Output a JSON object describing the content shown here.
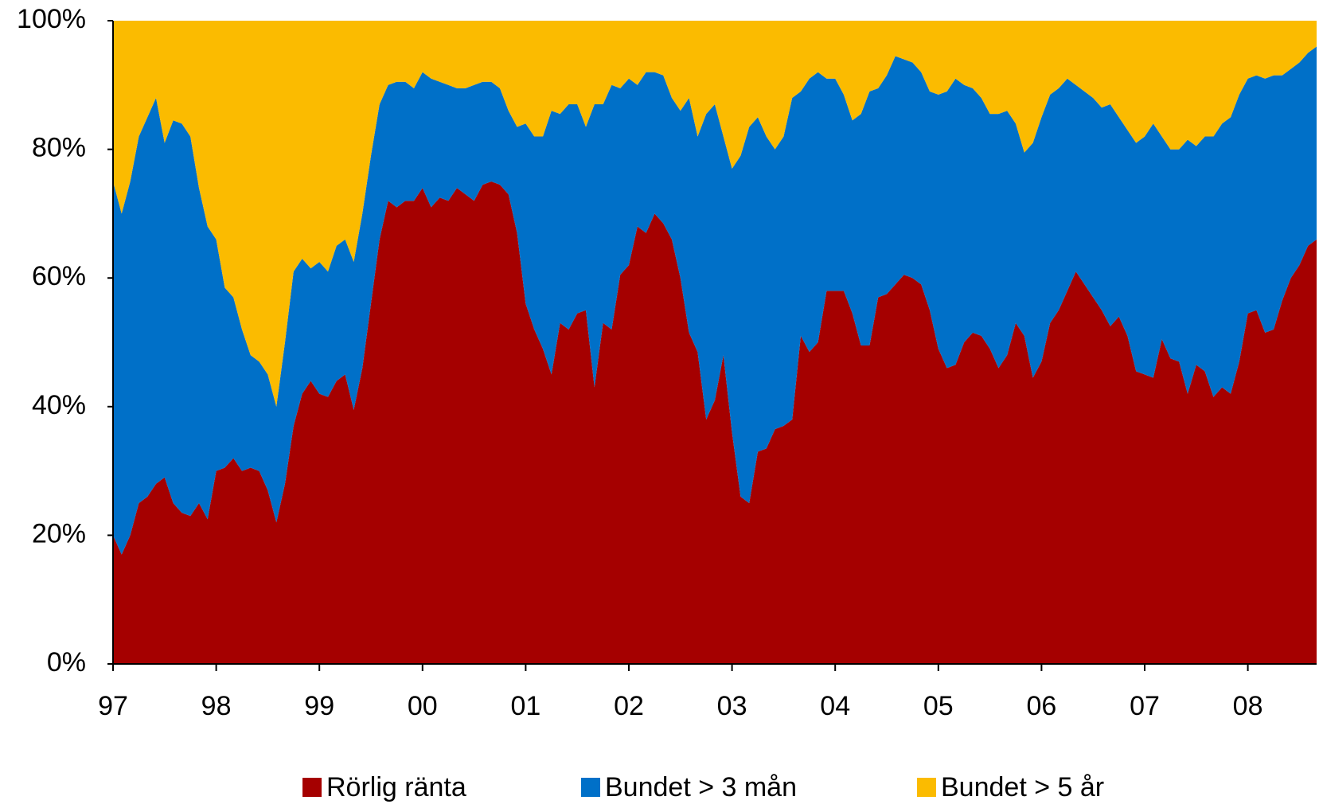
{
  "chart_data": {
    "type": "stacked-area",
    "categories": [
      "97",
      null,
      null,
      null,
      null,
      null,
      null,
      null,
      null,
      null,
      null,
      null,
      "98",
      null,
      null,
      null,
      null,
      null,
      null,
      null,
      null,
      null,
      null,
      null,
      "99",
      null,
      null,
      null,
      null,
      null,
      null,
      null,
      null,
      null,
      null,
      null,
      "00",
      null,
      null,
      null,
      null,
      null,
      null,
      null,
      null,
      null,
      null,
      null,
      "01",
      null,
      null,
      null,
      null,
      null,
      null,
      null,
      null,
      null,
      null,
      null,
      "02",
      null,
      null,
      null,
      null,
      null,
      null,
      null,
      null,
      null,
      null,
      null,
      "03",
      null,
      null,
      null,
      null,
      null,
      null,
      null,
      null,
      null,
      null,
      null,
      "04",
      null,
      null,
      null,
      null,
      null,
      null,
      null,
      null,
      null,
      null,
      null,
      "05",
      null,
      null,
      null,
      null,
      null,
      null,
      null,
      null,
      null,
      null,
      null,
      "06",
      null,
      null,
      null,
      null,
      null,
      null,
      null,
      null,
      null,
      null,
      null,
      "07",
      null,
      null,
      null,
      null,
      null,
      null,
      null,
      null,
      null,
      null,
      null,
      "08",
      null,
      null,
      null,
      null,
      null,
      null,
      null,
      null
    ],
    "series": [
      {
        "name": "Rörlig ränta",
        "color": "#a50000",
        "values": [
          20,
          17,
          20,
          25,
          26,
          28,
          29,
          25,
          23.5,
          23,
          25,
          22.5,
          30,
          30.5,
          32,
          30,
          30.5,
          30,
          27,
          22,
          28,
          37,
          42,
          44,
          42,
          41.5,
          44,
          45,
          39.5,
          46,
          56,
          66,
          72,
          71,
          72,
          72,
          74,
          71,
          72.5,
          72,
          74,
          73,
          72,
          74.5,
          75,
          74.5,
          73,
          67,
          56,
          52,
          49,
          45,
          53,
          52,
          54.5,
          55,
          43,
          53,
          52,
          60.5,
          62,
          68,
          67,
          70,
          68.5,
          66,
          60,
          51.5,
          48.5,
          38,
          41,
          48,
          36,
          26,
          25,
          33,
          33.5,
          36.5,
          37,
          38,
          51,
          48.5,
          50,
          58,
          58,
          58,
          54.5,
          49.5,
          49.5,
          57,
          57.5,
          59,
          60.5,
          60,
          59,
          55,
          49,
          46,
          46.5,
          50,
          51.5,
          51,
          49,
          46,
          48,
          53,
          51,
          44.5,
          47,
          53,
          55,
          58,
          61,
          59,
          57,
          55,
          52.5,
          54,
          51,
          45.5,
          45,
          44.5,
          50.5,
          47.5,
          47,
          42,
          46.5,
          45.5,
          41.5,
          43,
          42,
          47,
          54.5,
          55,
          51.5,
          52,
          56.5,
          60,
          62,
          65,
          66
        ]
      },
      {
        "name": "Bundet > 3 mån",
        "color": "#0070c8",
        "values": [
          55,
          53,
          55,
          57,
          59,
          60,
          52,
          59.5,
          60.5,
          59,
          49,
          45.5,
          36,
          28,
          25,
          22,
          17.5,
          17,
          18,
          18,
          22,
          24,
          21,
          17.5,
          20.5,
          19.5,
          21,
          21,
          23,
          24,
          23,
          21,
          18,
          19.5,
          18.5,
          17.5,
          18,
          20,
          18,
          18,
          15.5,
          16.5,
          18,
          16,
          15.5,
          15,
          13,
          16.5,
          28,
          30,
          33,
          41,
          32.5,
          35,
          32.5,
          28.5,
          44,
          34,
          38,
          29,
          29,
          22,
          25,
          22,
          23,
          22,
          26,
          36.5,
          33.5,
          47.5,
          46,
          34,
          41,
          53,
          58.5,
          52,
          48.5,
          43.5,
          45,
          50,
          38,
          42.5,
          42,
          33,
          33,
          30.5,
          30,
          36,
          39.5,
          32.5,
          34,
          35.5,
          33.5,
          33.5,
          33,
          34,
          39.5,
          43,
          44.5,
          40,
          38,
          37,
          36.5,
          39.5,
          38,
          31,
          28.5,
          36.5,
          38,
          35.5,
          34.5,
          33,
          29,
          30,
          31,
          31.5,
          34.5,
          31,
          32,
          35.5,
          37,
          39.5,
          31.5,
          32.5,
          33,
          39.5,
          34,
          36.5,
          40.5,
          41,
          43,
          41.5,
          36.5,
          36.5,
          39.5,
          39.5,
          35,
          32.5,
          31.5,
          30,
          30
        ]
      },
      {
        "name": "Bundet > 5 år",
        "color": "#fbbb00",
        "values": [
          25,
          30,
          25,
          18,
          15,
          12,
          19,
          15.5,
          16,
          18,
          26,
          32,
          34,
          41.5,
          43,
          48,
          52,
          53,
          55,
          60,
          50,
          39,
          37,
          38.5,
          37.5,
          39,
          35,
          34,
          37.5,
          30,
          21,
          13,
          10,
          9.5,
          9.5,
          10.5,
          8,
          9,
          9.5,
          10,
          10.5,
          10.5,
          10,
          9.5,
          9.5,
          10.5,
          14,
          16.5,
          16,
          18,
          18,
          14,
          14.5,
          13,
          13,
          16.5,
          13,
          13,
          10,
          10.5,
          9,
          10,
          8,
          8,
          8.5,
          12,
          14,
          12,
          18,
          14.5,
          13,
          18,
          23,
          21,
          16.5,
          15,
          18,
          20,
          18,
          12,
          11,
          9,
          8,
          9,
          9,
          11.5,
          15.5,
          14.5,
          11,
          10.5,
          8.5,
          5.5,
          6,
          6.5,
          8,
          11,
          11.5,
          11,
          9,
          10,
          10.5,
          12,
          14.5,
          14.5,
          14,
          16,
          20.5,
          19,
          15,
          11.5,
          10.5,
          9,
          10,
          11,
          12,
          13.5,
          13,
          15,
          17,
          19,
          18,
          16,
          18,
          20,
          20,
          18.5,
          19.5,
          18,
          18,
          16,
          15,
          11.5,
          9,
          8.5,
          9,
          8.5,
          8.5,
          7.5,
          6.5,
          5,
          4
        ]
      }
    ],
    "ylim": [
      0,
      100
    ],
    "yticks": [
      {
        "value": 0,
        "label": "0%"
      },
      {
        "value": 20,
        "label": "20%"
      },
      {
        "value": 40,
        "label": "40%"
      },
      {
        "value": 60,
        "label": "60%"
      },
      {
        "value": 80,
        "label": "80%"
      },
      {
        "value": 100,
        "label": "100%"
      }
    ],
    "legend": "bottom"
  }
}
